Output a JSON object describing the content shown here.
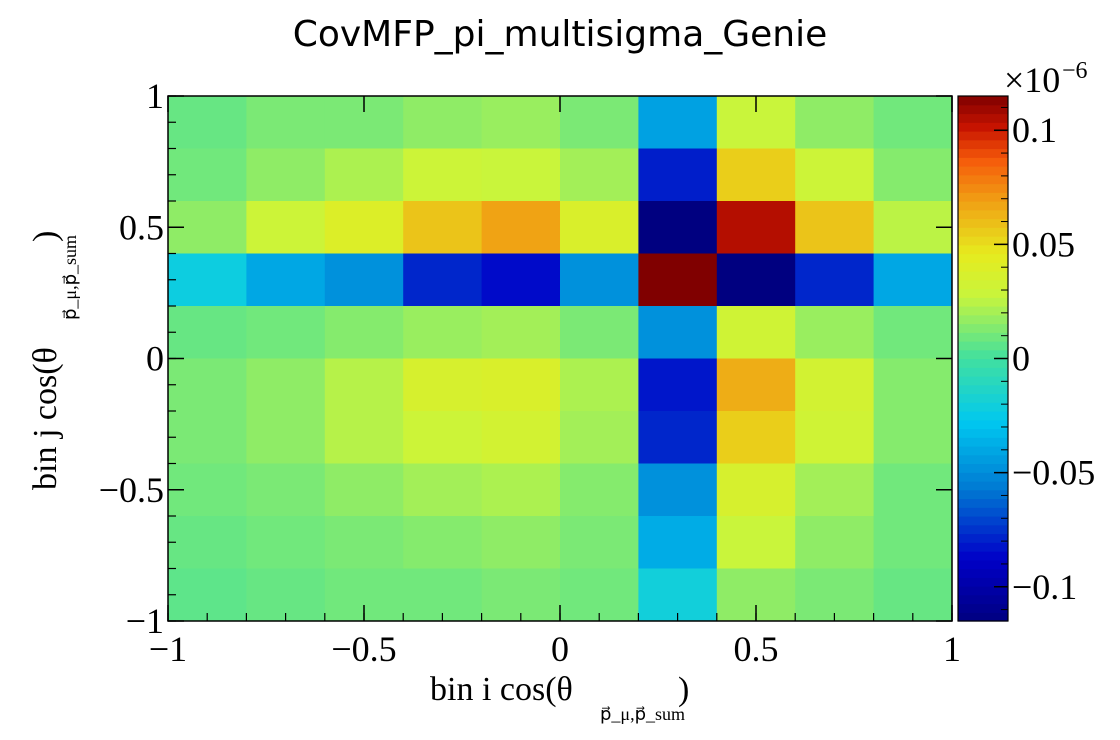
{
  "chart_data": {
    "type": "heatmap",
    "title": "CovMFP_pi_multisigma_Genie",
    "xlabel": "bin i cos(θ",
    "xlabel_sub": "p⃗_μ,p⃗_sum",
    "xlabel_close": ")",
    "ylabel": "bin j cos(θ",
    "ylabel_sub": "p⃗_μ,p⃗_sum",
    "ylabel_close": ")",
    "xlim": [
      -1,
      1
    ],
    "ylim": [
      -1,
      1
    ],
    "x_edges": [
      -1,
      -0.8,
      -0.6,
      -0.4,
      -0.2,
      0,
      0.2,
      0.4,
      0.6,
      0.8,
      1
    ],
    "y_edges": [
      -1,
      -0.8,
      -0.6,
      -0.4,
      -0.2,
      0,
      0.2,
      0.4,
      0.6,
      0.8,
      1
    ],
    "x_ticks": [
      "−1",
      "−0.5",
      "0",
      "0.5",
      "1"
    ],
    "x_tick_values": [
      -1,
      -0.5,
      0,
      0.5,
      1
    ],
    "y_ticks": [
      "−1",
      "−0.5",
      "0",
      "0.5",
      "1"
    ],
    "y_tick_values": [
      -1,
      -0.5,
      0,
      0.5,
      1
    ],
    "z_exponent_label": "×10",
    "z_exponent": "−6",
    "z_range": [
      -0.115,
      0.115
    ],
    "z_ticks": [
      "−0.1",
      "−0.05",
      "0",
      "0.05",
      "0.1"
    ],
    "z_tick_values": [
      -0.1,
      -0.05,
      0,
      0.05,
      0.1
    ],
    "values_top_to_bottom": [
      [
        0.008,
        0.012,
        0.012,
        0.016,
        0.018,
        0.012,
        -0.042,
        0.028,
        0.016,
        0.01
      ],
      [
        0.01,
        0.016,
        0.022,
        0.03,
        0.028,
        0.02,
        -0.08,
        0.055,
        0.03,
        0.014
      ],
      [
        0.016,
        0.03,
        0.04,
        0.058,
        0.068,
        0.038,
        -0.115,
        0.105,
        0.058,
        0.025
      ],
      [
        -0.022,
        -0.04,
        -0.048,
        -0.078,
        -0.085,
        -0.048,
        0.115,
        -0.115,
        -0.078,
        -0.04
      ],
      [
        0.008,
        0.01,
        0.014,
        0.018,
        0.02,
        0.012,
        -0.048,
        0.032,
        0.018,
        0.01
      ],
      [
        0.012,
        0.016,
        0.024,
        0.036,
        0.038,
        0.022,
        -0.082,
        0.065,
        0.034,
        0.014
      ],
      [
        0.012,
        0.016,
        0.024,
        0.03,
        0.034,
        0.02,
        -0.078,
        0.055,
        0.032,
        0.014
      ],
      [
        0.01,
        0.012,
        0.016,
        0.02,
        0.022,
        0.014,
        -0.048,
        0.036,
        0.02,
        0.01
      ],
      [
        0.008,
        0.01,
        0.012,
        0.014,
        0.016,
        0.012,
        -0.038,
        0.028,
        0.016,
        0.01
      ],
      [
        0.006,
        0.008,
        0.01,
        0.01,
        0.012,
        0.01,
        -0.02,
        0.016,
        0.012,
        0.008
      ]
    ],
    "colormap": "rainbow (dark blue → cyan → green → yellow → red → dark red)",
    "colorbar": "right",
    "grid": false
  }
}
